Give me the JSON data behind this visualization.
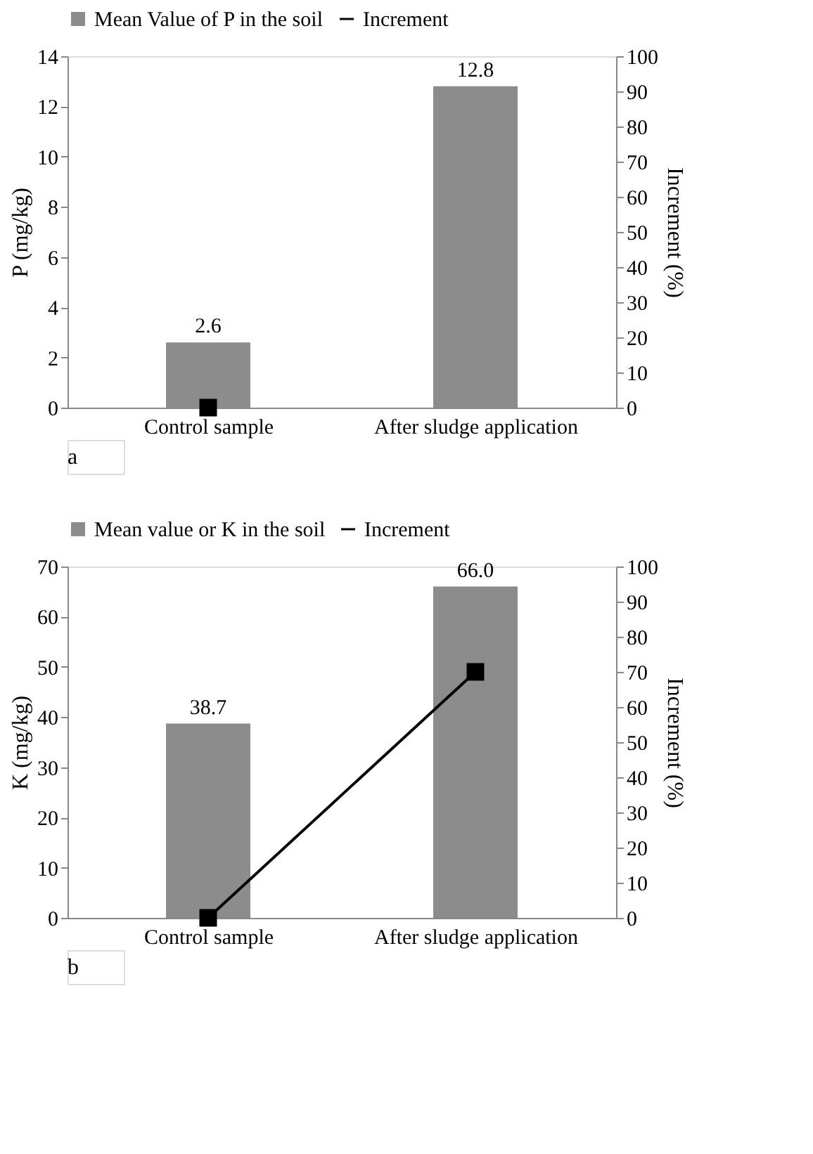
{
  "chart_data": [
    {
      "type": "bar",
      "categories": [
        "Control sample",
        "After sludge application"
      ],
      "ylabel": "P (mg/kg)",
      "y2label": "Increment (%)",
      "ylim": [
        0,
        14
      ],
      "yticks": [
        0,
        2,
        4,
        6,
        8,
        10,
        12,
        14
      ],
      "y2lim": [
        0,
        100
      ],
      "y2ticks": [
        0,
        10,
        20,
        30,
        40,
        50,
        60,
        70,
        80,
        90,
        100
      ],
      "legend": "top",
      "marker": "square",
      "grid": false,
      "annotations": [
        "a"
      ],
      "series": [
        {
          "name": "Mean Value of P in the soil",
          "color": "#8c8c8c",
          "values": [
            2.6,
            12.8
          ],
          "value_labels": [
            "2.6",
            "12.8"
          ]
        },
        {
          "name": "Increment",
          "type": "line",
          "axis": "y2",
          "color": "#000000",
          "values": [
            0,
            null
          ]
        }
      ]
    },
    {
      "type": "bar",
      "categories": [
        "Control sample",
        "After sludge application"
      ],
      "ylabel": "K (mg/kg)",
      "y2label": "Increment (%)",
      "ylim": [
        0,
        70
      ],
      "yticks": [
        0,
        10,
        20,
        30,
        40,
        50,
        60,
        70
      ],
      "y2lim": [
        0,
        100
      ],
      "y2ticks": [
        0,
        10,
        20,
        30,
        40,
        50,
        60,
        70,
        80,
        90,
        100
      ],
      "legend": "top",
      "marker": "square",
      "grid": false,
      "annotations": [
        "b"
      ],
      "series": [
        {
          "name": "Mean value or K in the soil",
          "color": "#8c8c8c",
          "values": [
            38.7,
            66.0
          ],
          "value_labels": [
            "38.7",
            "66.0"
          ]
        },
        {
          "name": "Increment",
          "type": "line",
          "axis": "y2",
          "color": "#000000",
          "values": [
            0,
            70
          ]
        }
      ]
    }
  ]
}
